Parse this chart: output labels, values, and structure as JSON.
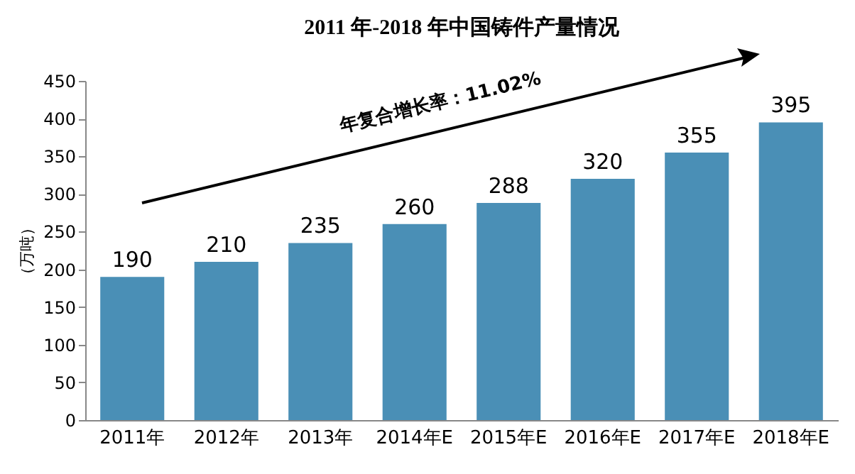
{
  "chart_data": {
    "type": "bar",
    "title": "2011 年-2018 年中国铸件产量情况",
    "ylabel": "（万吨）",
    "categories": [
      "2011年",
      "2012年",
      "2013年",
      "2014年E",
      "2015年E",
      "2016年E",
      "2017年E",
      "2018年E"
    ],
    "values": [
      190,
      210,
      235,
      260,
      288,
      320,
      355,
      395
    ],
    "color": "#4a8fb6",
    "ylim": [
      0,
      450
    ],
    "yticks": [
      0,
      50,
      100,
      150,
      200,
      250,
      300,
      350,
      400,
      450
    ],
    "grid": false,
    "data_labels": true,
    "annotations": [
      "年复合增长率：11.02%"
    ]
  }
}
